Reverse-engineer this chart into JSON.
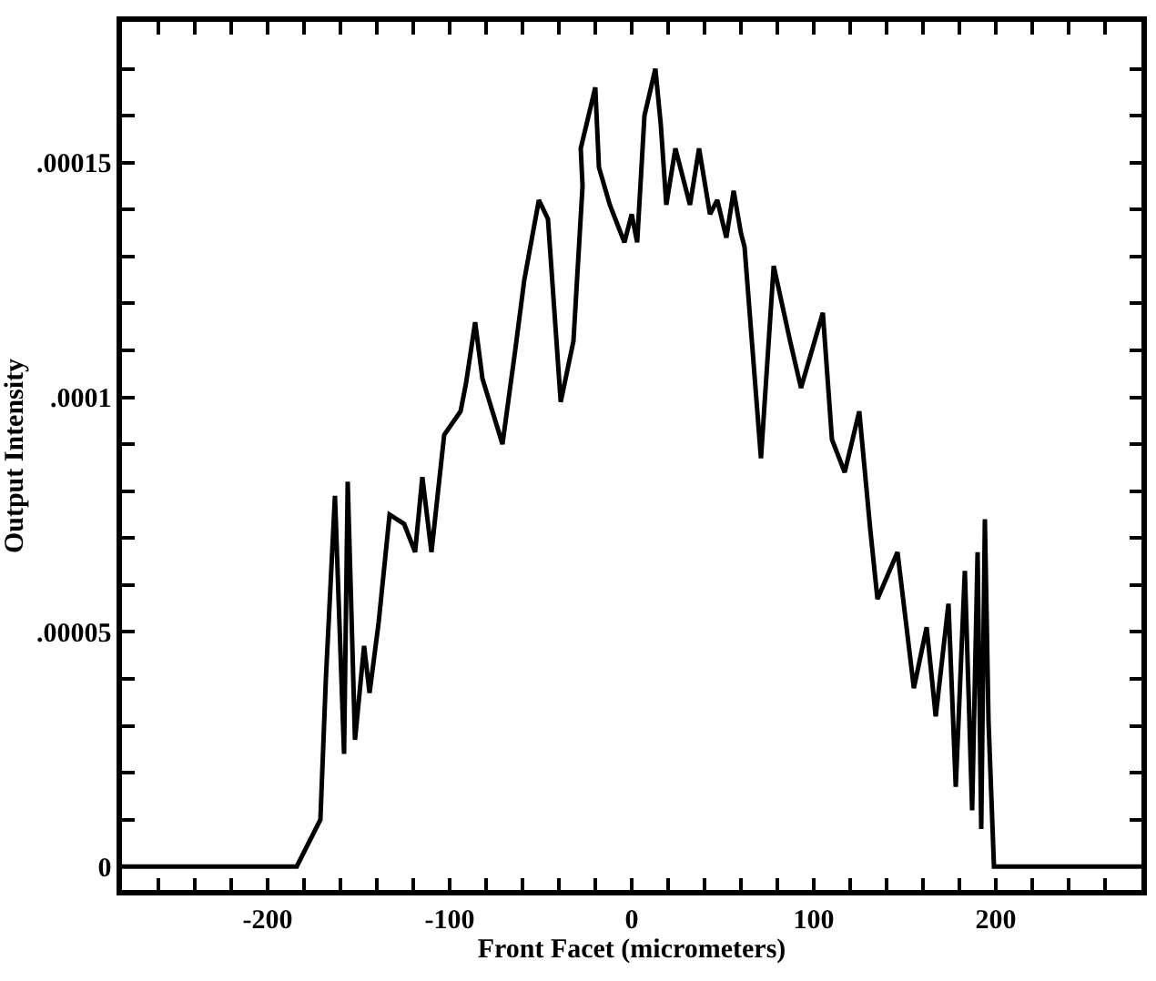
{
  "chart_data": {
    "type": "line",
    "xlabel": "Front Facet (micrometers)",
    "ylabel": "Output Intensity",
    "x": [
      -280,
      -184,
      -171,
      -168,
      -163,
      -158,
      -156,
      -152,
      -147,
      -144,
      -139,
      -133,
      -125,
      -119,
      -115,
      -110,
      -103,
      -94,
      -91,
      -86,
      -82,
      -71,
      -64,
      -59,
      -51,
      -46,
      -39,
      -32,
      -27,
      -28,
      -20,
      -18,
      -12,
      -4,
      0,
      3,
      7,
      13,
      16,
      19,
      24,
      32,
      37,
      43,
      47,
      52,
      56,
      60,
      62,
      71,
      78,
      87,
      93,
      105,
      110,
      117,
      125,
      131,
      135,
      146,
      155,
      162,
      167,
      174,
      178,
      183,
      187,
      190,
      192,
      194,
      196,
      199,
      280
    ],
    "series": [
      {
        "color": "#000000",
        "values": [
          0,
          0,
          1e-05,
          4e-05,
          7.9e-05,
          2.4e-05,
          8.2e-05,
          2.7e-05,
          4.7e-05,
          3.7e-05,
          5.2e-05,
          7.5e-05,
          7.3e-05,
          6.7e-05,
          8.3e-05,
          6.7e-05,
          9.2e-05,
          9.7e-05,
          0.000103,
          0.000116,
          0.000104,
          9e-05,
          0.00011,
          0.000125,
          0.000142,
          0.000138,
          9.9e-05,
          0.000112,
          0.000145,
          0.000153,
          0.000166,
          0.000149,
          0.000141,
          0.000133,
          0.000139,
          0.000133,
          0.00016,
          0.00017,
          0.000158,
          0.000141,
          0.000153,
          0.000141,
          0.000153,
          0.000139,
          0.000142,
          0.000134,
          0.000144,
          0.000135,
          0.000132,
          8.7e-05,
          0.000128,
          0.000112,
          0.000102,
          0.000118,
          9.1e-05,
          8.4e-05,
          9.7e-05,
          7.2e-05,
          5.7e-05,
          6.7e-05,
          3.8e-05,
          5.1e-05,
          3.2e-05,
          5.6e-05,
          1.7e-05,
          6.3e-05,
          1.2e-05,
          6.7e-05,
          8e-06,
          7.4e-05,
          3.1e-05,
          0,
          0
        ]
      }
    ],
    "xlim": [
      -280,
      280
    ],
    "xticks": [
      {
        "value": -260,
        "label": null
      },
      {
        "value": -240,
        "label": null
      },
      {
        "value": -220,
        "label": null
      },
      -200,
      {
        "value": -180,
        "label": null
      },
      {
        "value": -160,
        "label": null
      },
      {
        "value": -140,
        "label": null
      },
      {
        "value": -120,
        "label": null
      },
      -100,
      {
        "value": -80,
        "label": null
      },
      {
        "value": -60,
        "label": null
      },
      {
        "value": -40,
        "label": null
      },
      {
        "value": -20,
        "label": null
      },
      0,
      {
        "value": 20,
        "label": null
      },
      {
        "value": 40,
        "label": null
      },
      {
        "value": 60,
        "label": null
      },
      {
        "value": 80,
        "label": null
      },
      100,
      {
        "value": 120,
        "label": null
      },
      {
        "value": 140,
        "label": null
      },
      {
        "value": 160,
        "label": null
      },
      {
        "value": 180,
        "label": null
      },
      200,
      {
        "value": 220,
        "label": null
      },
      {
        "value": 240,
        "label": null
      },
      {
        "value": 260,
        "label": null
      }
    ],
    "ylim": [
      -5e-06,
      0.00018
    ],
    "yticks": [
      {
        "value": 0,
        "label": "0"
      },
      {
        "value": 1e-05,
        "label": null
      },
      {
        "value": 2e-05,
        "label": null
      },
      {
        "value": 3e-05,
        "label": null
      },
      {
        "value": 4e-05,
        "label": null
      },
      {
        "value": 5e-05,
        "label": ".00005"
      },
      {
        "value": 6e-05,
        "label": null
      },
      {
        "value": 7e-05,
        "label": null
      },
      {
        "value": 8e-05,
        "label": null
      },
      {
        "value": 9e-05,
        "label": null
      },
      {
        "value": 0.0001,
        "label": ".0001"
      },
      {
        "value": 0.00011,
        "label": null
      },
      {
        "value": 0.00012,
        "label": null
      },
      {
        "value": 0.00013,
        "label": null
      },
      {
        "value": 0.00014,
        "label": null
      },
      {
        "value": 0.00015,
        "label": ".00015"
      },
      {
        "value": 0.00016,
        "label": null
      },
      {
        "value": 0.00017,
        "label": null
      }
    ],
    "marker": "none",
    "line_style": "solid"
  }
}
